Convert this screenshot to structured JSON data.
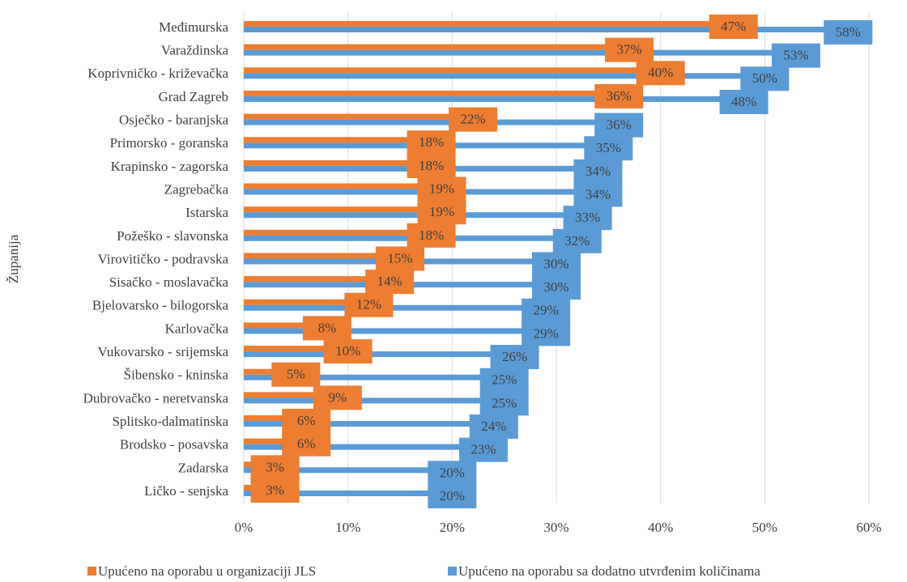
{
  "chart_data": {
    "type": "barh",
    "y_axis_label": "Županija",
    "categories": [
      "Međimurska",
      "Varaždinska",
      "Koprivničko - križevačka",
      "Grad Zagreb",
      "Osječko - baranjska",
      "Primorsko - goranska",
      "Krapinsko - zagorska",
      "Zagrebačka",
      "Istarska",
      "Požeško - slavonska",
      "Virovitičko - podravska",
      "Sisačko - moslavačka",
      "Bjelovarsko - bilogorska",
      "Karlovačka",
      "Vukovarsko - srijemska",
      "Šibensko - kninska",
      "Dubrovačko - neretvanska",
      "Splitsko-dalmatinska",
      "Brodsko - posavska",
      "Zadarska",
      "Ličko - senjska"
    ],
    "series": [
      {
        "name": "Upućeno na oporabu u organizaciji JLS",
        "color": "#ed7d31",
        "values": [
          47,
          37,
          40,
          36,
          22,
          18,
          18,
          19,
          19,
          18,
          15,
          14,
          12,
          8,
          10,
          5,
          9,
          6,
          6,
          3,
          3
        ],
        "value_labels": [
          "47%",
          "37%",
          "40%",
          "36%",
          "22%",
          "18%",
          "18%",
          "19%",
          "19%",
          "18%",
          "15%",
          "14%",
          "12%",
          "8%",
          "10%",
          "5%",
          "9%",
          "6%",
          "6%",
          "3%",
          "3%"
        ]
      },
      {
        "name": "Upućeno na oporabu sa dodatno utvrđenim količinama",
        "color": "#5b9bd5",
        "values": [
          58,
          53,
          50,
          48,
          36,
          35,
          34,
          34,
          33,
          32,
          30,
          30,
          29,
          29,
          26,
          25,
          25,
          24,
          23,
          20,
          20
        ],
        "value_labels": [
          "58%",
          "53%",
          "50%",
          "48%",
          "36%",
          "35%",
          "34%",
          "34%",
          "33%",
          "32%",
          "30%",
          "30%",
          "29%",
          "29%",
          "26%",
          "25%",
          "25%",
          "24%",
          "23%",
          "20%",
          "20%"
        ]
      }
    ],
    "xlim": [
      0,
      60
    ],
    "xticks": [
      {
        "value": 0,
        "label": "0%"
      },
      {
        "value": 10,
        "label": "10%"
      },
      {
        "value": 20,
        "label": "20%"
      },
      {
        "value": 30,
        "label": "30%"
      },
      {
        "value": 40,
        "label": "40%"
      },
      {
        "value": 50,
        "label": "50%"
      },
      {
        "value": 60,
        "label": "60%"
      }
    ],
    "grid": true,
    "legend": "bottom"
  }
}
